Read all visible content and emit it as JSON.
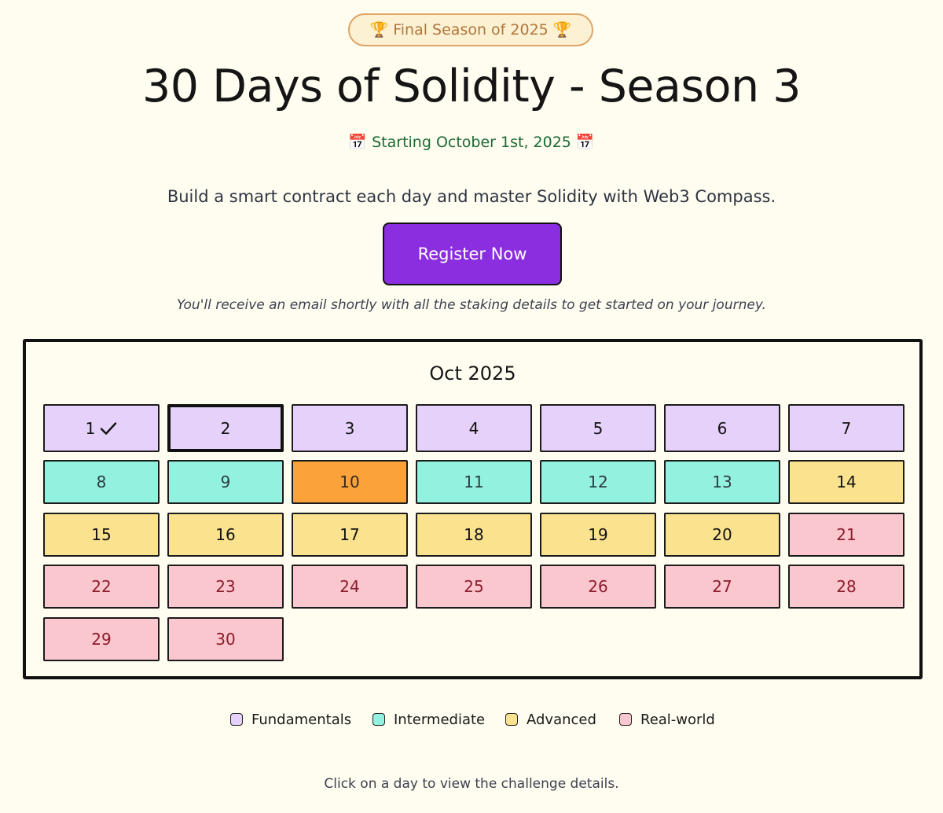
{
  "badge": "🏆 Final Season of 2025 🏆",
  "title": "30 Days of Solidity - Season 3",
  "start_date": "📅 Starting October 1st, 2025 📅",
  "tagline": "Build a smart contract each day and master Solidity with Web3 Compass.",
  "register_label": "Register Now",
  "note": "You'll receive an email shortly with all the staking details to get started on your journey.",
  "calendar": {
    "month": "Oct 2025",
    "days": [
      {
        "label": "1",
        "category": "fundamentals",
        "completed": true
      },
      {
        "label": "2",
        "category": "fundamentals",
        "selected": true
      },
      {
        "label": "3",
        "category": "fundamentals"
      },
      {
        "label": "4",
        "category": "fundamentals"
      },
      {
        "label": "5",
        "category": "fundamentals"
      },
      {
        "label": "6",
        "category": "fundamentals"
      },
      {
        "label": "7",
        "category": "fundamentals"
      },
      {
        "label": "8",
        "category": "intermediate"
      },
      {
        "label": "9",
        "category": "intermediate"
      },
      {
        "label": "10",
        "category": "intermediate",
        "highlighted": true
      },
      {
        "label": "11",
        "category": "intermediate"
      },
      {
        "label": "12",
        "category": "intermediate"
      },
      {
        "label": "13",
        "category": "intermediate"
      },
      {
        "label": "14",
        "category": "advanced"
      },
      {
        "label": "15",
        "category": "advanced"
      },
      {
        "label": "16",
        "category": "advanced"
      },
      {
        "label": "17",
        "category": "advanced"
      },
      {
        "label": "18",
        "category": "advanced"
      },
      {
        "label": "19",
        "category": "advanced"
      },
      {
        "label": "20",
        "category": "advanced"
      },
      {
        "label": "21",
        "category": "realworld"
      },
      {
        "label": "22",
        "category": "realworld"
      },
      {
        "label": "23",
        "category": "realworld"
      },
      {
        "label": "24",
        "category": "realworld"
      },
      {
        "label": "25",
        "category": "realworld"
      },
      {
        "label": "26",
        "category": "realworld"
      },
      {
        "label": "27",
        "category": "realworld"
      },
      {
        "label": "28",
        "category": "realworld"
      },
      {
        "label": "29",
        "category": "realworld"
      },
      {
        "label": "30",
        "category": "realworld"
      }
    ]
  },
  "legend": [
    {
      "label": "Fundamentals",
      "color": "#e6d1fb"
    },
    {
      "label": "Intermediate",
      "color": "#93f2df"
    },
    {
      "label": "Advanced",
      "color": "#fbe28f"
    },
    {
      "label": "Real-world",
      "color": "#fbc7cf"
    }
  ],
  "colors": {
    "background": "#fefdf0",
    "accent": "#8a2ee0",
    "highlight": "#fba23a"
  },
  "footer": "Click on a day to view the challenge details."
}
